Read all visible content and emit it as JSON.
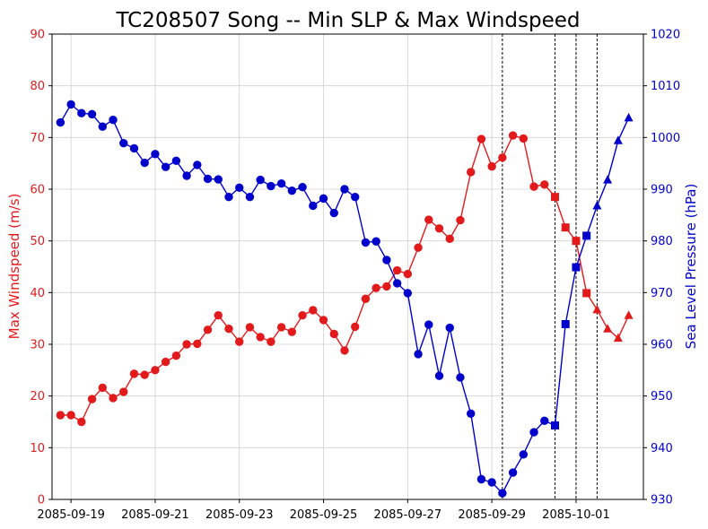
{
  "chart_data": {
    "type": "line",
    "title": "TC208507 Song -- Min SLP & Max Windspeed",
    "xlabel": "",
    "ylabel_left": "Max Windspeed (m/s)",
    "ylabel_right": "Sea Level Pressure (hPa)",
    "ylim_left": [
      0,
      90
    ],
    "ylim_right": [
      930,
      1020
    ],
    "yticks_left": [
      0,
      10,
      20,
      30,
      40,
      50,
      60,
      70,
      80,
      90
    ],
    "yticks_right": [
      930,
      940,
      950,
      960,
      970,
      980,
      990,
      1000,
      1010,
      1020
    ],
    "xlim_days": [
      -0.45,
      13.6
    ],
    "xticks": [
      {
        "day": 0,
        "label": "2085-09-19"
      },
      {
        "day": 2,
        "label": "2085-09-21"
      },
      {
        "day": 4,
        "label": "2085-09-23"
      },
      {
        "day": 6,
        "label": "2085-09-25"
      },
      {
        "day": 8,
        "label": "2085-09-27"
      },
      {
        "day": 10,
        "label": "2085-09-29"
      },
      {
        "day": 12,
        "label": "2085-10-01"
      }
    ],
    "grid": true,
    "colors": {
      "wind": "#e31a1c",
      "slp": "#0000cc",
      "left_axis": "#e31a1c",
      "right_axis": "#0000cc"
    },
    "vlines_days": [
      10.25,
      11.5,
      12.0,
      12.5
    ],
    "x_days": [
      -0.25,
      0,
      0.25,
      0.5,
      0.75,
      1,
      1.25,
      1.5,
      1.75,
      2,
      2.25,
      2.5,
      2.75,
      3,
      3.25,
      3.5,
      3.75,
      4,
      4.25,
      4.5,
      4.75,
      5,
      5.25,
      5.5,
      5.75,
      6,
      6.25,
      6.5,
      6.75,
      7,
      7.25,
      7.5,
      7.75,
      8,
      8.25,
      8.5,
      8.75,
      9,
      9.25,
      9.5,
      9.75,
      10,
      10.25,
      10.5,
      10.75,
      11,
      11.25,
      11.5,
      11.75,
      12,
      12.25,
      12.5,
      12.75,
      13,
      13.25
    ],
    "markers": [
      "o",
      "o",
      "o",
      "o",
      "o",
      "o",
      "o",
      "o",
      "o",
      "o",
      "o",
      "o",
      "o",
      "o",
      "o",
      "o",
      "o",
      "o",
      "o",
      "o",
      "o",
      "o",
      "o",
      "o",
      "o",
      "o",
      "o",
      "o",
      "o",
      "o",
      "o",
      "o",
      "o",
      "o",
      "o",
      "o",
      "o",
      "o",
      "o",
      "o",
      "o",
      "o",
      "o",
      "o",
      "o",
      "o",
      "o",
      "s",
      "s",
      "s",
      "s",
      "^",
      "^",
      "^",
      "^"
    ],
    "series": [
      {
        "name": "Max Windspeed",
        "axis": "left",
        "values": [
          16.3,
          16.3,
          15.0,
          19.4,
          21.6,
          19.6,
          20.8,
          24.3,
          24.1,
          25.0,
          26.6,
          27.8,
          30.0,
          30.1,
          32.8,
          35.6,
          33.0,
          30.5,
          33.3,
          31.4,
          30.5,
          33.3,
          32.4,
          35.6,
          36.6,
          34.7,
          32.0,
          28.8,
          33.4,
          38.8,
          40.9,
          41.2,
          44.3,
          43.6,
          48.7,
          54.1,
          52.4,
          50.4,
          54.0,
          63.3,
          69.7,
          64.4,
          66.1,
          70.4,
          69.8,
          60.5,
          60.9,
          58.5,
          52.6,
          50.0,
          39.9,
          36.7,
          33.0,
          31.2,
          35.6
        ]
      },
      {
        "name": "Min SLP",
        "axis": "right",
        "values": [
          1002.9,
          1006.4,
          1004.7,
          1004.5,
          1002.1,
          1003.4,
          998.9,
          997.9,
          995.1,
          996.8,
          994.3,
          995.5,
          992.6,
          994.7,
          992.0,
          991.9,
          988.5,
          990.3,
          988.5,
          991.8,
          990.6,
          991.1,
          989.7,
          990.4,
          986.8,
          988.2,
          985.4,
          990.0,
          988.5,
          979.7,
          979.9,
          976.3,
          971.8,
          969.9,
          958.1,
          963.8,
          953.9,
          963.2,
          953.6,
          946.6,
          933.9,
          933.3,
          931.2,
          935.2,
          938.7,
          943.0,
          945.2,
          944.3,
          963.9,
          974.9,
          981.0,
          986.8,
          991.8,
          999.4,
          1003.8
        ]
      }
    ]
  }
}
